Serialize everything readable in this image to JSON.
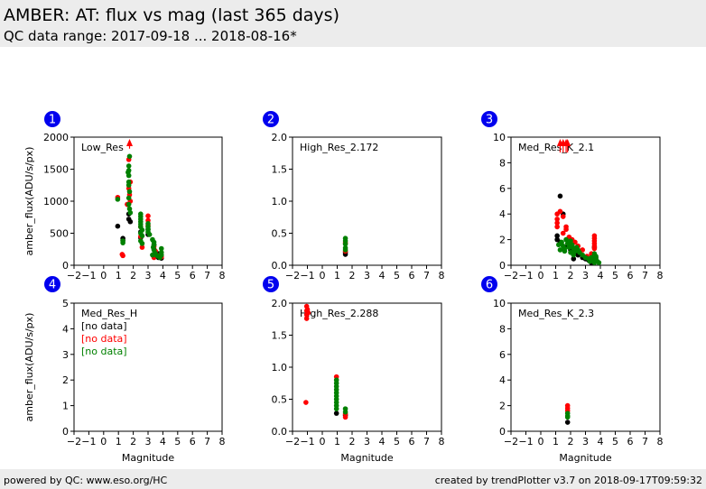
{
  "header": {
    "title": "AMBER: AT: flux vs mag (last 365 days)",
    "subtitle": "QC data range: 2017-09-18 ... 2018-08-16*"
  },
  "footer": {
    "left": "powered by QC: www.eso.org/HC",
    "right": "created by trendPlotter v3.7 on 2018-09-17T09:59:32"
  },
  "colors": {
    "black": "#000000",
    "red": "#ff0000",
    "green": "#008000",
    "badge": "#0000ee"
  },
  "chart_data": [
    {
      "type": "scatter",
      "badge": "1",
      "panel_label": "Low_Res",
      "xlim": [
        -2,
        8
      ],
      "ylim": [
        0,
        2000
      ],
      "xticks": [
        -2,
        -1,
        0,
        1,
        2,
        3,
        4,
        5,
        6,
        7,
        8
      ],
      "yticks": [
        0,
        500,
        1000,
        1500,
        2000
      ],
      "xlabel": "",
      "ylabel": "amber_flux(ADU/s/px)",
      "no_data": [],
      "series": [
        {
          "color": "black",
          "points": [
            [
              0.95,
              610
            ],
            [
              1.3,
              420
            ],
            [
              1.3,
              390
            ],
            [
              1.7,
              800
            ],
            [
              1.7,
              720
            ],
            [
              1.8,
              680
            ],
            [
              1.6,
              950
            ],
            [
              2.5,
              520
            ],
            [
              2.5,
              430
            ],
            [
              3.0,
              560
            ],
            [
              3.0,
              480
            ],
            [
              3.4,
              320
            ],
            [
              3.4,
              250
            ],
            [
              3.4,
              150
            ],
            [
              3.7,
              180
            ],
            [
              3.7,
              120
            ],
            [
              3.9,
              110
            ],
            [
              3.5,
              200
            ]
          ]
        },
        {
          "color": "red",
          "points": [
            [
              0.95,
              1060
            ],
            [
              1.25,
              170
            ],
            [
              1.3,
              150
            ],
            [
              1.7,
              1200
            ],
            [
              1.75,
              1100
            ],
            [
              1.6,
              950
            ],
            [
              1.8,
              1300
            ],
            [
              1.8,
              1000
            ],
            [
              1.7,
              1650
            ],
            [
              2.5,
              450
            ],
            [
              2.6,
              280
            ],
            [
              2.5,
              600
            ],
            [
              3.0,
              770
            ],
            [
              3.0,
              700
            ],
            [
              3.0,
              620
            ],
            [
              3.4,
              290
            ],
            [
              3.5,
              220
            ],
            [
              3.7,
              150
            ],
            [
              3.9,
              130
            ],
            [
              3.4,
              120
            ]
          ]
        },
        {
          "color": "green",
          "points": [
            [
              0.95,
              1030
            ],
            [
              1.3,
              380
            ],
            [
              1.3,
              350
            ],
            [
              1.7,
              1550
            ],
            [
              1.7,
              1480
            ],
            [
              1.7,
              1400
            ],
            [
              1.7,
              1300
            ],
            [
              1.7,
              1250
            ],
            [
              1.75,
              1150
            ],
            [
              1.7,
              1050
            ],
            [
              1.7,
              950
            ],
            [
              1.75,
              880
            ],
            [
              1.8,
              820
            ],
            [
              1.65,
              1450
            ],
            [
              1.75,
              1700
            ],
            [
              2.5,
              800
            ],
            [
              2.5,
              760
            ],
            [
              2.5,
              720
            ],
            [
              2.5,
              680
            ],
            [
              2.5,
              640
            ],
            [
              2.5,
              600
            ],
            [
              2.6,
              550
            ],
            [
              2.5,
              500
            ],
            [
              2.6,
              460
            ],
            [
              2.5,
              380
            ],
            [
              2.6,
              340
            ],
            [
              3.0,
              650
            ],
            [
              3.0,
              600
            ],
            [
              3.0,
              560
            ],
            [
              3.0,
              520
            ],
            [
              3.1,
              480
            ],
            [
              3.3,
              400
            ],
            [
              3.4,
              360
            ],
            [
              3.4,
              320
            ],
            [
              3.35,
              280
            ],
            [
              3.4,
              240
            ],
            [
              3.45,
              200
            ],
            [
              3.5,
              180
            ],
            [
              3.3,
              160
            ],
            [
              3.6,
              150
            ],
            [
              3.7,
              140
            ],
            [
              3.9,
              260
            ],
            [
              3.9,
              200
            ],
            [
              3.9,
              160
            ],
            [
              3.8,
              120
            ]
          ]
        }
      ],
      "arrows": [
        [
          1.75,
          1820
        ]
      ]
    },
    {
      "type": "scatter",
      "badge": "2",
      "panel_label": "High_Res_2.172",
      "xlim": [
        -2,
        8
      ],
      "ylim": [
        0,
        2
      ],
      "xticks": [
        -2,
        -1,
        0,
        1,
        2,
        3,
        4,
        5,
        6,
        7,
        8
      ],
      "yticks": [
        0.0,
        0.5,
        1.0,
        1.5,
        2.0
      ],
      "xlabel": "",
      "ylabel": "",
      "no_data": [],
      "series": [
        {
          "color": "black",
          "points": [
            [
              1.55,
              0.17
            ],
            [
              1.55,
              0.2
            ]
          ]
        },
        {
          "color": "red",
          "points": [
            [
              1.55,
              0.22
            ],
            [
              1.55,
              0.35
            ]
          ]
        },
        {
          "color": "green",
          "points": [
            [
              1.55,
              0.42
            ],
            [
              1.55,
              0.38
            ],
            [
              1.55,
              0.33
            ],
            [
              1.55,
              0.27
            ],
            [
              1.55,
              0.24
            ]
          ]
        }
      ],
      "arrows": []
    },
    {
      "type": "scatter",
      "badge": "3",
      "panel_label": "Med_Res_K_2.1",
      "xlim": [
        -2,
        8
      ],
      "ylim": [
        0,
        10
      ],
      "xticks": [
        -2,
        -1,
        0,
        1,
        2,
        3,
        4,
        5,
        6,
        7,
        8
      ],
      "yticks": [
        0,
        2,
        4,
        6,
        8,
        10
      ],
      "xlabel": "",
      "ylabel": "",
      "no_data": [],
      "series": [
        {
          "color": "black",
          "points": [
            [
              1.3,
              5.4
            ],
            [
              1.5,
              4.0
            ],
            [
              1.1,
              2.3
            ],
            [
              1.1,
              2.0
            ],
            [
              1.3,
              1.8
            ],
            [
              1.8,
              1.5
            ],
            [
              2.0,
              1.2
            ],
            [
              2.3,
              1.0
            ],
            [
              2.5,
              0.8
            ],
            [
              2.8,
              0.6
            ],
            [
              3.0,
              0.5
            ],
            [
              3.2,
              0.4
            ],
            [
              3.6,
              0.3
            ],
            [
              3.6,
              1.4
            ],
            [
              3.7,
              0.6
            ],
            [
              2.2,
              0.5
            ],
            [
              3.4,
              0.2
            ]
          ]
        },
        {
          "color": "red",
          "points": [
            [
              1.1,
              4.0
            ],
            [
              1.1,
              3.6
            ],
            [
              1.1,
              3.3
            ],
            [
              1.1,
              3.0
            ],
            [
              1.3,
              4.2
            ],
            [
              1.5,
              3.8
            ],
            [
              1.7,
              3.0
            ],
            [
              1.7,
              2.8
            ],
            [
              1.5,
              2.5
            ],
            [
              1.9,
              2.2
            ],
            [
              2.1,
              2.0
            ],
            [
              2.3,
              1.8
            ],
            [
              2.5,
              1.5
            ],
            [
              2.8,
              1.2
            ],
            [
              3.6,
              2.3
            ],
            [
              3.6,
              2.1
            ],
            [
              3.6,
              1.9
            ],
            [
              3.6,
              1.7
            ],
            [
              3.6,
              1.5
            ],
            [
              3.6,
              1.3
            ],
            [
              3.4,
              0.9
            ],
            [
              3.1,
              0.7
            ]
          ]
        },
        {
          "color": "green",
          "points": [
            [
              1.2,
              1.6
            ],
            [
              1.3,
              1.2
            ],
            [
              1.4,
              1.8
            ],
            [
              1.5,
              1.5
            ],
            [
              1.6,
              1.3
            ],
            [
              1.7,
              2.0
            ],
            [
              1.8,
              1.7
            ],
            [
              1.9,
              1.4
            ],
            [
              2.0,
              1.9
            ],
            [
              2.1,
              1.6
            ],
            [
              2.2,
              1.3
            ],
            [
              2.3,
              1.1
            ],
            [
              2.4,
              1.4
            ],
            [
              2.5,
              1.2
            ],
            [
              2.6,
              1.0
            ],
            [
              2.8,
              0.8
            ],
            [
              3.0,
              0.6
            ],
            [
              3.2,
              0.5
            ],
            [
              3.3,
              0.3
            ],
            [
              3.4,
              0.6
            ],
            [
              3.5,
              0.4
            ],
            [
              3.6,
              0.2
            ],
            [
              3.7,
              0.5
            ],
            [
              3.8,
              0.3
            ],
            [
              3.9,
              0.2
            ],
            [
              3.6,
              0.9
            ],
            [
              3.7,
              0.7
            ],
            [
              1.6,
              1.1
            ],
            [
              2.0,
              1.0
            ],
            [
              2.2,
              0.8
            ]
          ]
        }
      ],
      "arrows": [
        [
          1.3,
          8.8
        ],
        [
          1.5,
          8.8
        ],
        [
          1.7,
          8.8
        ],
        [
          1.8,
          8.8
        ]
      ]
    },
    {
      "type": "scatter",
      "badge": "4",
      "panel_label": "Med_Res_H",
      "xlim": [
        -2,
        8
      ],
      "ylim": [
        0,
        5
      ],
      "xticks": [
        -2,
        -1,
        0,
        1,
        2,
        3,
        4,
        5,
        6,
        7,
        8
      ],
      "yticks": [
        0,
        1,
        2,
        3,
        4,
        5
      ],
      "xlabel": "Magnitude",
      "ylabel": "amber_flux(ADU/s/px)",
      "no_data": [
        {
          "text": "[no data]",
          "color": "black"
        },
        {
          "text": "[no data]",
          "color": "red"
        },
        {
          "text": "[no data]",
          "color": "green"
        }
      ],
      "series": [],
      "arrows": []
    },
    {
      "type": "scatter",
      "badge": "5",
      "panel_label": "High_Res_2.288",
      "xlim": [
        -2,
        8
      ],
      "ylim": [
        0,
        2
      ],
      "xticks": [
        -2,
        -1,
        0,
        1,
        2,
        3,
        4,
        5,
        6,
        7,
        8
      ],
      "yticks": [
        0.0,
        0.5,
        1.0,
        1.5,
        2.0
      ],
      "xlabel": "Magnitude",
      "ylabel": "",
      "no_data": [],
      "series": [
        {
          "color": "black",
          "points": [
            [
              0.95,
              0.28
            ],
            [
              1.55,
              0.25
            ]
          ]
        },
        {
          "color": "red",
          "points": [
            [
              -1.05,
              1.95
            ],
            [
              -1.05,
              1.88
            ],
            [
              -1.05,
              1.82
            ],
            [
              -1.05,
              1.76
            ],
            [
              -1.0,
              1.9
            ],
            [
              -0.95,
              1.85
            ],
            [
              -1.1,
              0.45
            ],
            [
              0.95,
              0.85
            ],
            [
              1.55,
              0.22
            ],
            [
              1.55,
              0.27
            ]
          ]
        },
        {
          "color": "green",
          "points": [
            [
              0.95,
              0.8
            ],
            [
              0.95,
              0.75
            ],
            [
              0.95,
              0.7
            ],
            [
              0.95,
              0.65
            ],
            [
              0.95,
              0.6
            ],
            [
              0.95,
              0.55
            ],
            [
              0.95,
              0.5
            ],
            [
              0.95,
              0.45
            ],
            [
              0.95,
              0.4
            ],
            [
              0.95,
              0.35
            ],
            [
              1.55,
              0.35
            ],
            [
              1.55,
              0.3
            ]
          ]
        }
      ],
      "arrows": []
    },
    {
      "type": "scatter",
      "badge": "6",
      "panel_label": "Med_Res_K_2.3",
      "xlim": [
        -2,
        8
      ],
      "ylim": [
        0,
        10
      ],
      "xticks": [
        -2,
        -1,
        0,
        1,
        2,
        3,
        4,
        5,
        6,
        7,
        8
      ],
      "yticks": [
        0,
        2,
        4,
        6,
        8,
        10
      ],
      "xlabel": "Magnitude",
      "ylabel": "",
      "no_data": [],
      "series": [
        {
          "color": "black",
          "points": [
            [
              1.8,
              0.7
            ]
          ]
        },
        {
          "color": "red",
          "points": [
            [
              1.8,
              2.0
            ],
            [
              1.8,
              1.8
            ],
            [
              1.8,
              1.6
            ]
          ]
        },
        {
          "color": "green",
          "points": [
            [
              1.8,
              1.4
            ],
            [
              1.8,
              1.2
            ],
            [
              1.8,
              1.1
            ]
          ]
        }
      ],
      "arrows": []
    }
  ]
}
